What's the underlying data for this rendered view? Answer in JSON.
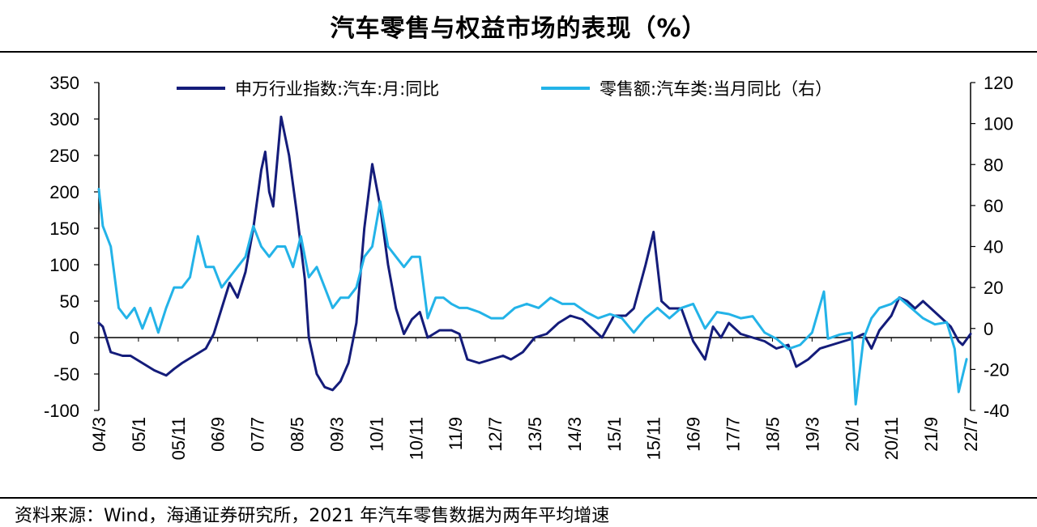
{
  "title": "汽车零售与权益市场的表现（%）",
  "source": "资料来源：Wind，海通证券研究所，2021 年汽车零售数据为两年平均增速",
  "colors": {
    "series1": "#141c7a",
    "series2": "#23b3e8",
    "axis": "#000000"
  },
  "chart_data": {
    "type": "line",
    "xlabel": "",
    "ylabel": "",
    "x_tick_labels": [
      "04/3",
      "05/1",
      "05/11",
      "06/9",
      "07/7",
      "08/5",
      "09/3",
      "10/1",
      "10/11",
      "11/9",
      "12/7",
      "13/5",
      "14/3",
      "15/1",
      "15/11",
      "16/9",
      "17/7",
      "18/5",
      "19/3",
      "20/1",
      "20/11",
      "21/9",
      "22/7"
    ],
    "x_range": [
      "2004-03",
      "2022-07"
    ],
    "y_left": {
      "lim": [
        -100,
        350
      ],
      "ticks": [
        -100,
        -50,
        0,
        50,
        100,
        150,
        200,
        250,
        300,
        350
      ]
    },
    "y_right": {
      "lim": [
        -40,
        120
      ],
      "ticks": [
        -40,
        -20,
        0,
        20,
        40,
        60,
        80,
        100,
        120
      ]
    },
    "legend_position": "top",
    "grid": false,
    "series": [
      {
        "name": "申万行业指数:汽车:月:同比",
        "axis": "left",
        "points": [
          [
            "2004-03",
            20
          ],
          [
            "2004-04",
            15
          ],
          [
            "2004-06",
            -20
          ],
          [
            "2004-09",
            -25
          ],
          [
            "2004-11",
            -25
          ],
          [
            "2005-02",
            -35
          ],
          [
            "2005-05",
            -45
          ],
          [
            "2005-08",
            -52
          ],
          [
            "2005-10",
            -43
          ],
          [
            "2005-12",
            -35
          ],
          [
            "2006-03",
            -25
          ],
          [
            "2006-06",
            -15
          ],
          [
            "2006-08",
            5
          ],
          [
            "2006-10",
            40
          ],
          [
            "2006-12",
            75
          ],
          [
            "2007-02",
            55
          ],
          [
            "2007-04",
            90
          ],
          [
            "2007-06",
            150
          ],
          [
            "2007-08",
            230
          ],
          [
            "2007-09",
            255
          ],
          [
            "2007-10",
            200
          ],
          [
            "2007-11",
            180
          ],
          [
            "2008-01",
            303
          ],
          [
            "2008-03",
            250
          ],
          [
            "2008-05",
            170
          ],
          [
            "2008-07",
            80
          ],
          [
            "2008-08",
            0
          ],
          [
            "2008-10",
            -50
          ],
          [
            "2008-12",
            -68
          ],
          [
            "2009-02",
            -72
          ],
          [
            "2009-04",
            -60
          ],
          [
            "2009-06",
            -35
          ],
          [
            "2009-08",
            20
          ],
          [
            "2009-10",
            150
          ],
          [
            "2009-12",
            238
          ],
          [
            "2010-02",
            180
          ],
          [
            "2010-04",
            100
          ],
          [
            "2010-06",
            40
          ],
          [
            "2010-08",
            5
          ],
          [
            "2010-10",
            25
          ],
          [
            "2010-12",
            35
          ],
          [
            "2011-02",
            0
          ],
          [
            "2011-05",
            10
          ],
          [
            "2011-08",
            10
          ],
          [
            "2011-10",
            5
          ],
          [
            "2011-12",
            -30
          ],
          [
            "2012-03",
            -35
          ],
          [
            "2012-06",
            -30
          ],
          [
            "2012-09",
            -25
          ],
          [
            "2012-11",
            -30
          ],
          [
            "2013-02",
            -20
          ],
          [
            "2013-05",
            0
          ],
          [
            "2013-08",
            5
          ],
          [
            "2013-11",
            20
          ],
          [
            "2014-02",
            30
          ],
          [
            "2014-05",
            25
          ],
          [
            "2014-08",
            10
          ],
          [
            "2014-10",
            0
          ],
          [
            "2015-01",
            30
          ],
          [
            "2015-04",
            30
          ],
          [
            "2015-06",
            40
          ],
          [
            "2015-09",
            100
          ],
          [
            "2015-11",
            145
          ],
          [
            "2016-01",
            50
          ],
          [
            "2016-03",
            40
          ],
          [
            "2016-06",
            40
          ],
          [
            "2016-09",
            -5
          ],
          [
            "2016-12",
            -30
          ],
          [
            "2017-02",
            15
          ],
          [
            "2017-04",
            0
          ],
          [
            "2017-06",
            20
          ],
          [
            "2017-09",
            5
          ],
          [
            "2017-12",
            0
          ],
          [
            "2018-03",
            -5
          ],
          [
            "2018-06",
            -15
          ],
          [
            "2018-09",
            -10
          ],
          [
            "2018-11",
            -40
          ],
          [
            "2019-02",
            -30
          ],
          [
            "2019-05",
            -15
          ],
          [
            "2019-08",
            -10
          ],
          [
            "2019-11",
            -5
          ],
          [
            "2020-02",
            0
          ],
          [
            "2020-04",
            5
          ],
          [
            "2020-06",
            -15
          ],
          [
            "2020-08",
            10
          ],
          [
            "2020-11",
            30
          ],
          [
            "2021-01",
            55
          ],
          [
            "2021-03",
            50
          ],
          [
            "2021-05",
            40
          ],
          [
            "2021-07",
            50
          ],
          [
            "2021-09",
            40
          ],
          [
            "2021-11",
            30
          ],
          [
            "2022-02",
            15
          ],
          [
            "2022-04",
            -5
          ],
          [
            "2022-05",
            -10
          ],
          [
            "2022-07",
            5
          ]
        ]
      },
      {
        "name": "零售额:汽车类:当月同比（右）",
        "axis": "right",
        "points": [
          [
            "2004-03",
            68
          ],
          [
            "2004-04",
            50
          ],
          [
            "2004-06",
            40
          ],
          [
            "2004-08",
            10
          ],
          [
            "2004-10",
            5
          ],
          [
            "2004-12",
            10
          ],
          [
            "2005-02",
            0
          ],
          [
            "2005-04",
            10
          ],
          [
            "2005-06",
            -2
          ],
          [
            "2005-08",
            10
          ],
          [
            "2005-10",
            20
          ],
          [
            "2005-12",
            20
          ],
          [
            "2006-02",
            25
          ],
          [
            "2006-04",
            45
          ],
          [
            "2006-06",
            30
          ],
          [
            "2006-08",
            30
          ],
          [
            "2006-10",
            20
          ],
          [
            "2006-12",
            25
          ],
          [
            "2007-02",
            30
          ],
          [
            "2007-04",
            35
          ],
          [
            "2007-06",
            50
          ],
          [
            "2007-08",
            40
          ],
          [
            "2007-10",
            35
          ],
          [
            "2007-12",
            40
          ],
          [
            "2008-02",
            40
          ],
          [
            "2008-04",
            30
          ],
          [
            "2008-06",
            45
          ],
          [
            "2008-08",
            25
          ],
          [
            "2008-10",
            30
          ],
          [
            "2008-12",
            20
          ],
          [
            "2009-02",
            10
          ],
          [
            "2009-04",
            15
          ],
          [
            "2009-06",
            15
          ],
          [
            "2009-08",
            20
          ],
          [
            "2009-10",
            35
          ],
          [
            "2009-12",
            40
          ],
          [
            "2010-02",
            62
          ],
          [
            "2010-04",
            40
          ],
          [
            "2010-06",
            35
          ],
          [
            "2010-08",
            30
          ],
          [
            "2010-10",
            35
          ],
          [
            "2010-12",
            35
          ],
          [
            "2011-02",
            5
          ],
          [
            "2011-04",
            15
          ],
          [
            "2011-06",
            15
          ],
          [
            "2011-08",
            12
          ],
          [
            "2011-10",
            10
          ],
          [
            "2011-12",
            10
          ],
          [
            "2012-03",
            8
          ],
          [
            "2012-06",
            5
          ],
          [
            "2012-09",
            5
          ],
          [
            "2012-12",
            10
          ],
          [
            "2013-03",
            12
          ],
          [
            "2013-06",
            10
          ],
          [
            "2013-09",
            15
          ],
          [
            "2013-12",
            12
          ],
          [
            "2014-03",
            12
          ],
          [
            "2014-06",
            8
          ],
          [
            "2014-09",
            5
          ],
          [
            "2014-12",
            7
          ],
          [
            "2015-03",
            5
          ],
          [
            "2015-06",
            -2
          ],
          [
            "2015-09",
            5
          ],
          [
            "2015-12",
            10
          ],
          [
            "2016-03",
            5
          ],
          [
            "2016-06",
            10
          ],
          [
            "2016-09",
            12
          ],
          [
            "2016-12",
            0
          ],
          [
            "2017-03",
            8
          ],
          [
            "2017-06",
            7
          ],
          [
            "2017-09",
            5
          ],
          [
            "2017-12",
            6
          ],
          [
            "2018-03",
            -2
          ],
          [
            "2018-06",
            -5
          ],
          [
            "2018-09",
            -10
          ],
          [
            "2018-12",
            -8
          ],
          [
            "2019-03",
            -2
          ],
          [
            "2019-06",
            18
          ],
          [
            "2019-07",
            -5
          ],
          [
            "2019-10",
            -3
          ],
          [
            "2020-01",
            -2
          ],
          [
            "2020-02",
            -37
          ],
          [
            "2020-04",
            -5
          ],
          [
            "2020-06",
            5
          ],
          [
            "2020-08",
            10
          ],
          [
            "2020-11",
            12
          ],
          [
            "2021-01",
            15
          ],
          [
            "2021-04",
            10
          ],
          [
            "2021-07",
            5
          ],
          [
            "2021-10",
            2
          ],
          [
            "2022-01",
            3
          ],
          [
            "2022-03",
            -10
          ],
          [
            "2022-04",
            -31
          ],
          [
            "2022-06",
            -15
          ]
        ]
      }
    ]
  }
}
